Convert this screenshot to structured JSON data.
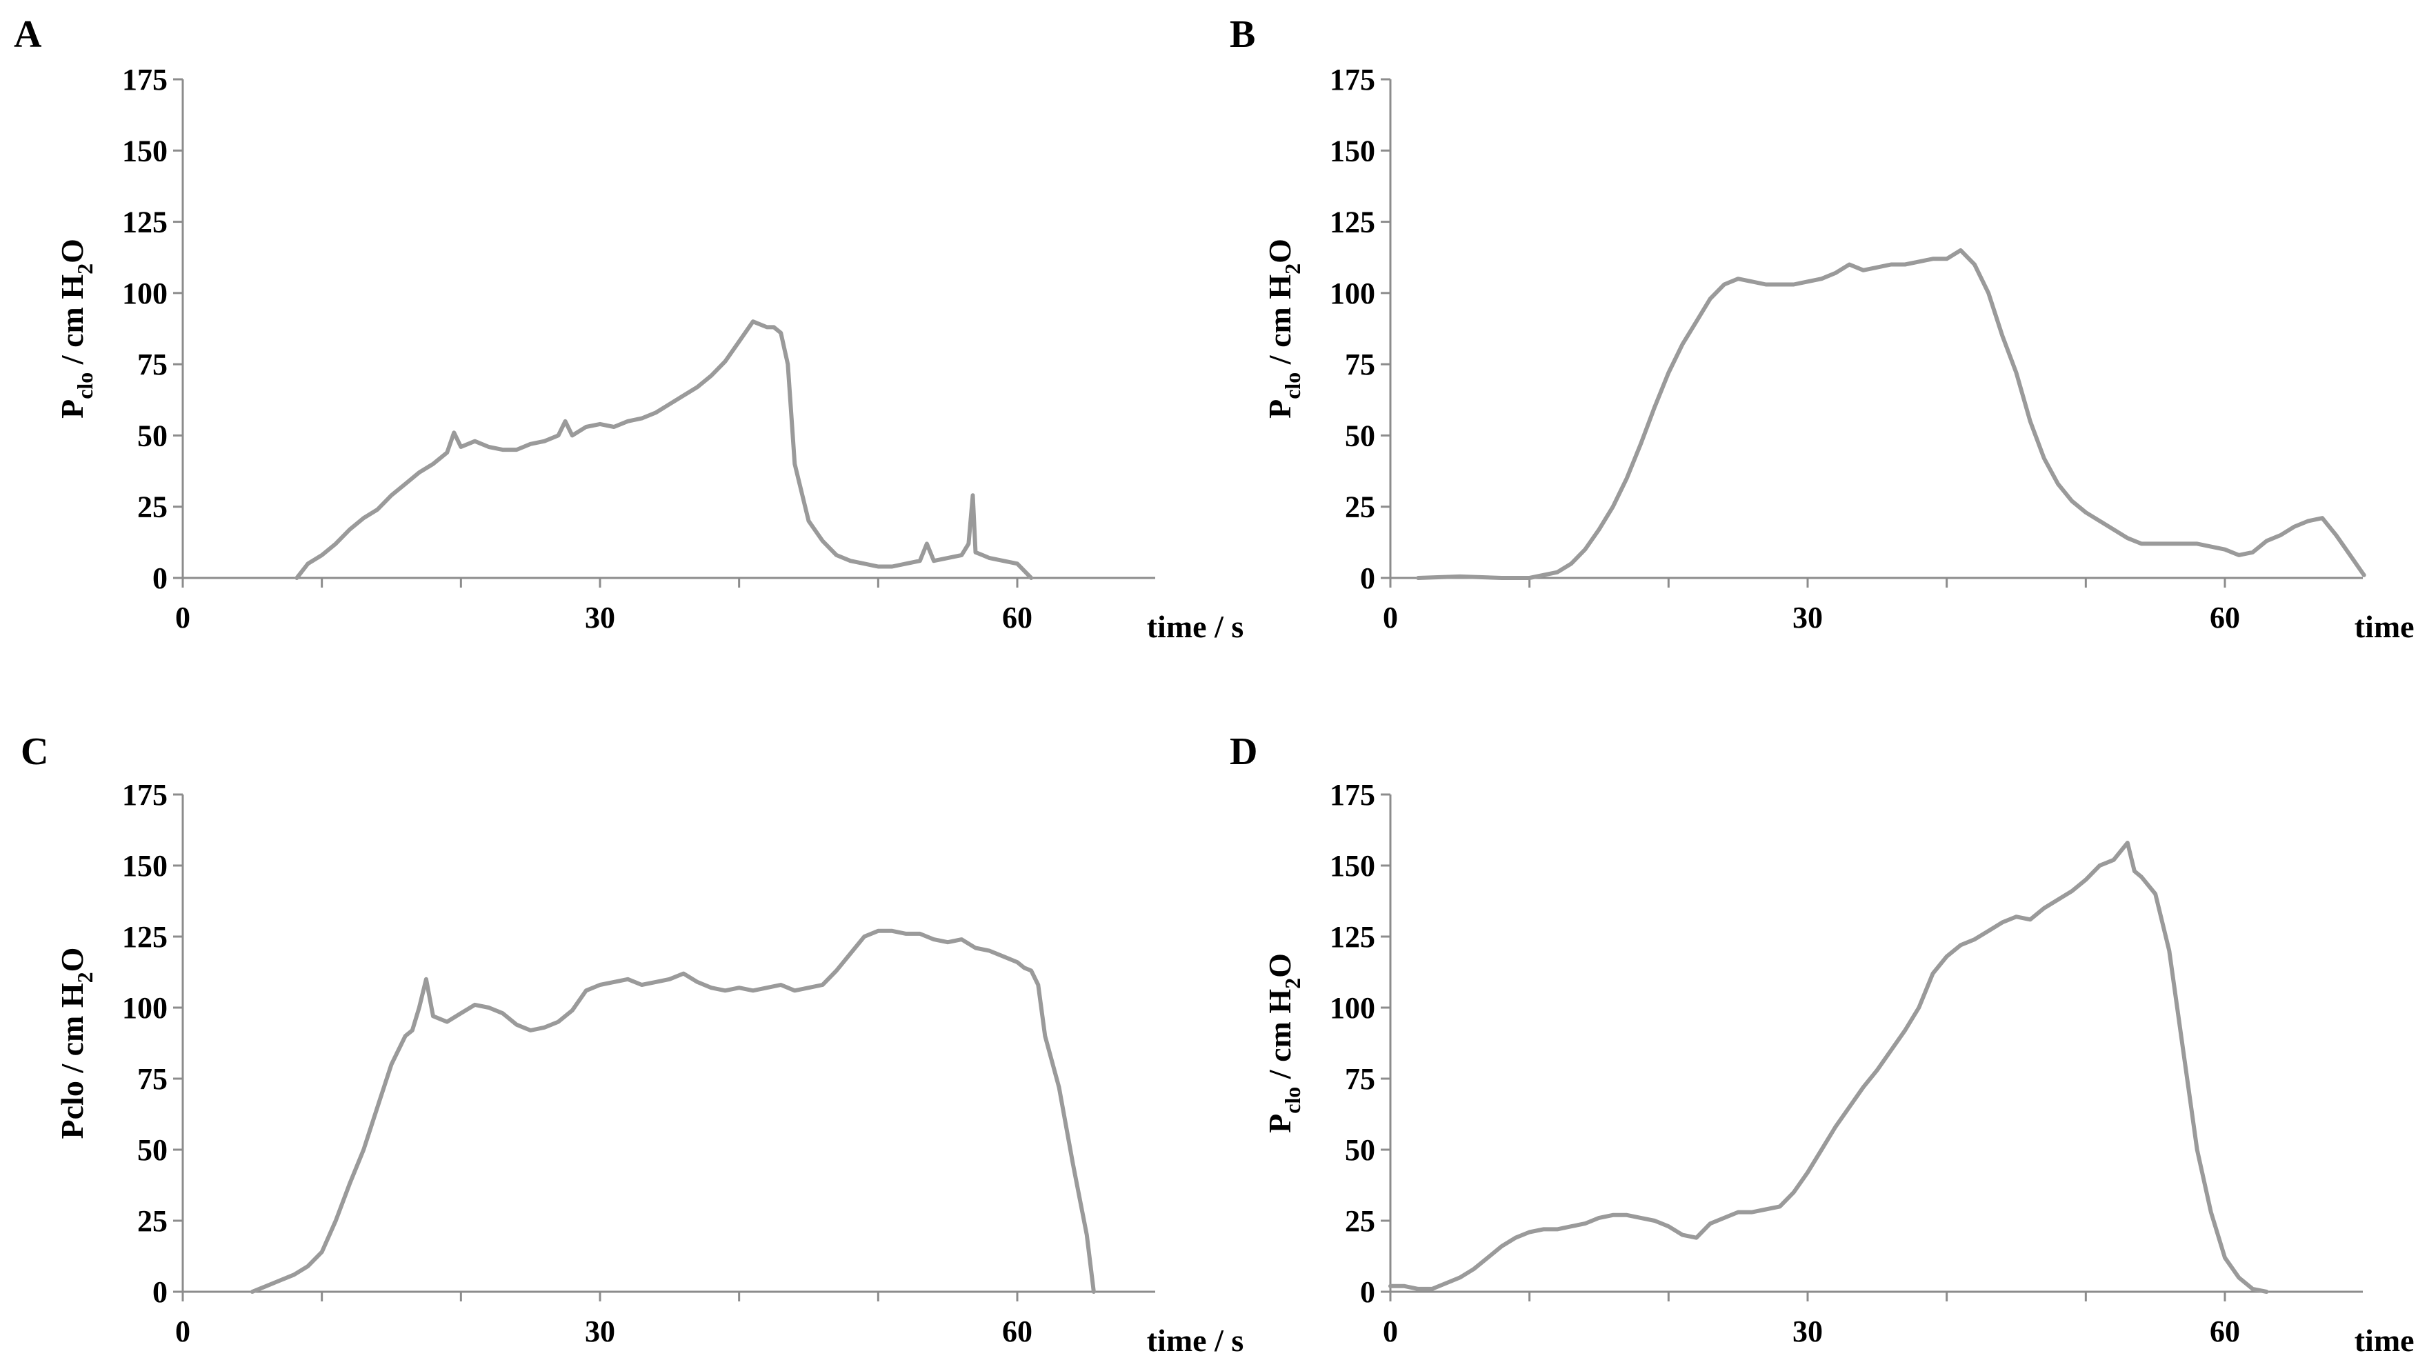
{
  "figure": {
    "line_color": "#9a9a9a",
    "axis_color": "#8c8c8c",
    "text_color": "#000000"
  },
  "chart_data": [
    {
      "panel": "A",
      "type": "line",
      "title": "",
      "xlabel": "time / s",
      "ylabel": {
        "main": "P",
        "subscript": "clo",
        "unit": " / cm H",
        "unit_sub": "2",
        "unit_end": "O"
      },
      "xlim": [
        0,
        70
      ],
      "ylim": [
        0,
        175
      ],
      "xticks": [
        0,
        30,
        60
      ],
      "yticks": [
        0,
        25,
        50,
        75,
        100,
        125,
        150,
        175
      ],
      "grid": false,
      "series": [
        {
          "name": "Pclo",
          "x": [
            8.2,
            9,
            10,
            11,
            12,
            13,
            14,
            15,
            16,
            17,
            18,
            19,
            19.5,
            20,
            21,
            22,
            23,
            24,
            25,
            26,
            27,
            27.5,
            28,
            29,
            30,
            31,
            32,
            33,
            34,
            35,
            36,
            37,
            38,
            39,
            40,
            41,
            42,
            42.5,
            43,
            43.5,
            44,
            45,
            46,
            47,
            48,
            49,
            50,
            51,
            52,
            53,
            53.5,
            54,
            55,
            56,
            56.5,
            56.8,
            57,
            57.5,
            58,
            59,
            60,
            61
          ],
          "y": [
            0,
            5,
            8,
            12,
            17,
            21,
            24,
            29,
            33,
            37,
            40,
            44,
            51,
            46,
            48,
            46,
            45,
            45,
            47,
            48,
            50,
            55,
            50,
            53,
            54,
            53,
            55,
            56,
            58,
            61,
            64,
            67,
            71,
            76,
            83,
            90,
            88,
            88,
            86,
            75,
            40,
            20,
            13,
            8,
            6,
            5,
            4,
            4,
            5,
            6,
            12,
            6,
            7,
            8,
            12,
            29,
            9,
            8,
            7,
            6,
            5,
            0
          ]
        }
      ]
    },
    {
      "panel": "B",
      "type": "line",
      "title": "",
      "xlabel": "time / s",
      "ylabel": {
        "main": "P",
        "subscript": "clo",
        "unit": " / cm H",
        "unit_sub": "2",
        "unit_end": "O"
      },
      "xlim": [
        0,
        70
      ],
      "ylim": [
        0,
        175
      ],
      "xticks": [
        0,
        30,
        60
      ],
      "yticks": [
        0,
        25,
        50,
        75,
        100,
        125,
        150,
        175
      ],
      "grid": false,
      "series": [
        {
          "name": "Pclo",
          "x": [
            2,
            5,
            8,
            10,
            12,
            13,
            14,
            15,
            16,
            17,
            18,
            19,
            20,
            21,
            22,
            23,
            24,
            25,
            26,
            27,
            28,
            29,
            30,
            31,
            32,
            33,
            34,
            35,
            36,
            37,
            38,
            39,
            40,
            41,
            42,
            43,
            44,
            45,
            46,
            47,
            48,
            49,
            50,
            51,
            52,
            53,
            54,
            55,
            56,
            57,
            58,
            59,
            60,
            61,
            62,
            63,
            64,
            65,
            66,
            67,
            68,
            69,
            70
          ],
          "y": [
            0,
            0.5,
            0,
            0,
            2,
            5,
            10,
            17,
            25,
            35,
            47,
            60,
            72,
            82,
            90,
            98,
            103,
            105,
            104,
            103,
            103,
            103,
            104,
            105,
            107,
            110,
            108,
            109,
            110,
            110,
            111,
            112,
            112,
            115,
            110,
            100,
            85,
            72,
            55,
            42,
            33,
            27,
            23,
            20,
            17,
            14,
            12,
            12,
            12,
            12,
            12,
            11,
            10,
            8,
            9,
            13,
            15,
            18,
            20,
            21,
            15,
            8,
            1
          ]
        }
      ]
    },
    {
      "panel": "C",
      "type": "line",
      "title": "",
      "xlabel": "time / s",
      "ylabel": {
        "main": "Pclo",
        "subscript": "",
        "unit": " / cm H",
        "unit_sub": "2",
        "unit_end": "O"
      },
      "xlim": [
        0,
        70
      ],
      "ylim": [
        0,
        175
      ],
      "xticks": [
        0,
        30,
        60
      ],
      "yticks": [
        0,
        25,
        50,
        75,
        100,
        125,
        150,
        175
      ],
      "grid": false,
      "series": [
        {
          "name": "Pclo",
          "x": [
            5,
            6,
            7,
            8,
            9,
            10,
            11,
            12,
            13,
            14,
            15,
            16,
            16.5,
            17,
            17.5,
            18,
            19,
            20,
            21,
            22,
            23,
            24,
            25,
            26,
            27,
            28,
            29,
            30,
            31,
            32,
            33,
            34,
            35,
            36,
            37,
            38,
            39,
            40,
            41,
            42,
            43,
            44,
            45,
            46,
            47,
            48,
            49,
            50,
            51,
            52,
            53,
            54,
            55,
            56,
            57,
            58,
            59,
            60,
            60.5,
            61,
            61.5,
            62,
            63,
            64,
            65,
            65.5
          ],
          "y": [
            0,
            2,
            4,
            6,
            9,
            14,
            25,
            38,
            50,
            65,
            80,
            90,
            92,
            100,
            110,
            97,
            95,
            98,
            101,
            100,
            98,
            94,
            92,
            93,
            95,
            99,
            106,
            108,
            109,
            110,
            108,
            109,
            110,
            112,
            109,
            107,
            106,
            107,
            106,
            107,
            108,
            106,
            107,
            108,
            113,
            119,
            125,
            127,
            127,
            126,
            126,
            124,
            123,
            124,
            121,
            120,
            118,
            116,
            114,
            113,
            108,
            90,
            72,
            45,
            20,
            0
          ]
        }
      ]
    },
    {
      "panel": "D",
      "type": "line",
      "title": "",
      "xlabel": "time / s",
      "ylabel": {
        "main": "P",
        "subscript": "clo",
        "unit": " / cm H",
        "unit_sub": "2",
        "unit_end": "O"
      },
      "xlim": [
        0,
        70
      ],
      "ylim": [
        0,
        175
      ],
      "xticks": [
        0,
        30,
        60
      ],
      "yticks": [
        0,
        25,
        50,
        75,
        100,
        125,
        150,
        175
      ],
      "grid": false,
      "series": [
        {
          "name": "Pclo",
          "x": [
            0,
            1,
            2,
            3,
            4,
            5,
            6,
            7,
            8,
            9,
            10,
            11,
            12,
            13,
            14,
            15,
            16,
            17,
            18,
            19,
            20,
            21,
            22,
            23,
            24,
            25,
            26,
            27,
            28,
            29,
            30,
            31,
            32,
            33,
            34,
            35,
            36,
            37,
            38,
            39,
            40,
            41,
            42,
            43,
            44,
            45,
            46,
            47,
            48,
            49,
            50,
            51,
            52,
            53,
            53.5,
            54,
            55,
            56,
            57,
            58,
            59,
            60,
            61,
            62,
            63
          ],
          "y": [
            2,
            2,
            1,
            1,
            3,
            5,
            8,
            12,
            16,
            19,
            21,
            22,
            22,
            23,
            24,
            26,
            27,
            27,
            26,
            25,
            23,
            20,
            19,
            24,
            26,
            28,
            28,
            29,
            30,
            35,
            42,
            50,
            58,
            65,
            72,
            78,
            85,
            92,
            100,
            112,
            118,
            122,
            124,
            127,
            130,
            132,
            131,
            135,
            138,
            141,
            145,
            150,
            152,
            158,
            148,
            146,
            140,
            120,
            85,
            50,
            28,
            12,
            5,
            1,
            0
          ]
        }
      ]
    }
  ]
}
